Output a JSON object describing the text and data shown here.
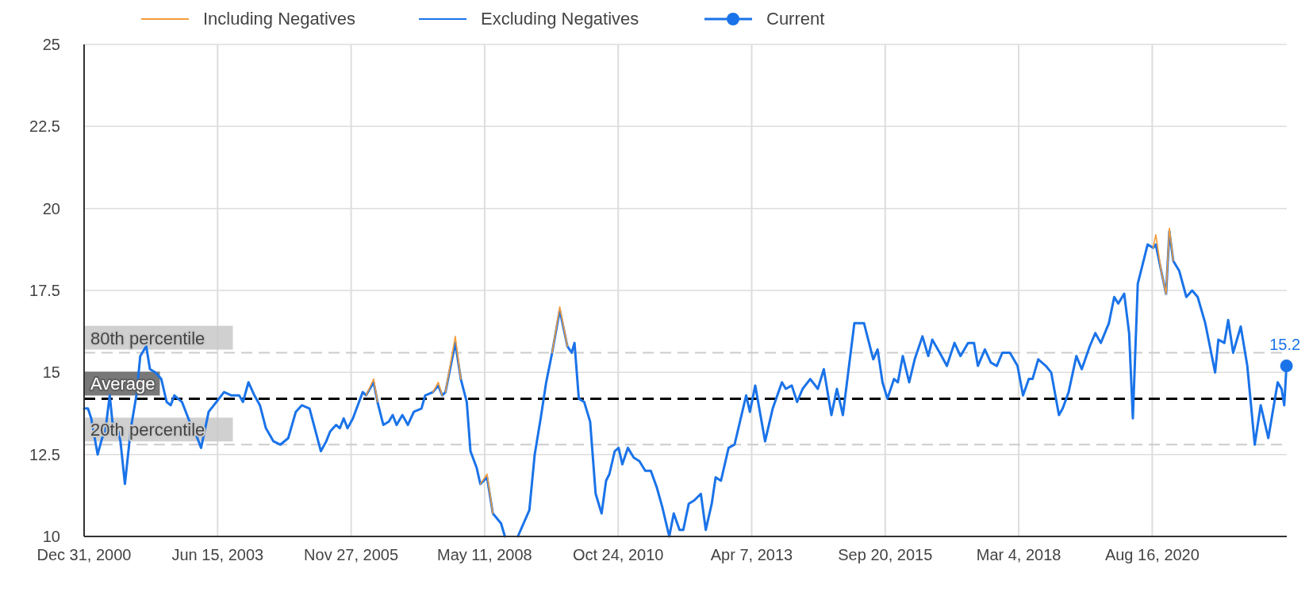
{
  "chart_data": {
    "type": "line",
    "legend": "top",
    "grid": true,
    "marker": "none",
    "line_style": "solid",
    "xlim": [
      "2000-12-31",
      "2023-02-05"
    ],
    "xticks": [
      {
        "value": "2000-12-31",
        "label": "Dec 31, 2000"
      },
      {
        "value": "2003-06-15",
        "label": "Jun 15, 2003"
      },
      {
        "value": "2005-11-27",
        "label": "Nov 27, 2005"
      },
      {
        "value": "2008-05-11",
        "label": "May 11, 2008"
      },
      {
        "value": "2010-10-24",
        "label": "Oct 24, 2010"
      },
      {
        "value": "2013-04-07",
        "label": "Apr 7, 2013"
      },
      {
        "value": "2015-09-20",
        "label": "Sep 20, 2015"
      },
      {
        "value": "2018-03-04",
        "label": "Mar 4, 2018"
      },
      {
        "value": "2020-08-16",
        "label": "Aug 16, 2020"
      }
    ],
    "ylim": [
      10,
      25
    ],
    "yticks": [
      10,
      12.5,
      15,
      17.5,
      20,
      22.5,
      25
    ],
    "x": [
      "2000-12-31",
      "2001-01-26",
      "2001-02-17",
      "2001-04-01",
      "2001-05-01",
      "2001-05-22",
      "2001-06-21",
      "2001-07-16",
      "2001-08-18",
      "2001-09-01",
      "2001-10-01",
      "2001-11-10",
      "2001-12-17",
      "2002-01-12",
      "2002-02-21",
      "2002-03-18",
      "2002-04-23",
      "2002-06-02",
      "2002-07-08",
      "2002-08-04",
      "2002-08-29",
      "2002-10-19",
      "2002-12-09",
      "2003-01-30",
      "2003-02-24",
      "2003-04-16",
      "2003-06-07",
      "2003-07-28",
      "2003-09-17",
      "2003-11-07",
      "2003-12-02",
      "2004-01-08",
      "2004-02-17",
      "2004-03-25",
      "2004-05-04",
      "2004-06-24",
      "2004-08-10",
      "2004-10-01",
      "2004-11-21",
      "2004-12-31",
      "2005-02-21",
      "2005-03-28",
      "2005-05-08",
      "2005-06-13",
      "2005-07-09",
      "2005-08-18",
      "2005-09-12",
      "2005-10-08",
      "2005-11-03",
      "2005-12-09",
      "2006-01-19",
      "2006-02-13",
      "2006-03-07",
      "2006-04-27",
      "2006-05-23",
      "2006-07-01",
      "2006-08-07",
      "2006-09-02",
      "2006-09-28",
      "2006-11-06",
      "2006-12-13",
      "2007-01-22",
      "2007-03-14",
      "2007-04-08",
      "2007-05-30",
      "2007-07-05",
      "2007-07-31",
      "2007-08-22",
      "2007-10-27",
      "2007-12-03",
      "2008-01-12",
      "2008-02-06",
      "2008-03-18",
      "2008-04-12",
      "2008-05-27",
      "2008-07-05",
      "2008-08-29",
      "2008-09-24",
      "2008-11-15",
      "2008-12-20",
      "2009-03-07",
      "2009-04-12",
      "2009-05-22",
      "2009-06-28",
      "2009-08-07",
      "2009-09-27",
      "2009-11-17",
      "2009-12-16",
      "2010-01-04",
      "2010-02-02",
      "2010-03-10",
      "2010-04-19",
      "2010-05-26",
      "2010-07-05",
      "2010-08-04",
      "2010-08-26",
      "2010-10-01",
      "2010-10-27",
      "2010-11-21",
      "2010-12-28",
      "2011-02-06",
      "2011-03-15",
      "2011-04-24",
      "2011-05-31",
      "2011-07-10",
      "2011-08-16",
      "2011-10-02",
      "2011-11-01",
      "2011-12-10",
      "2012-01-04",
      "2012-02-10",
      "2012-03-18",
      "2012-05-01",
      "2012-06-03",
      "2012-07-13",
      "2012-08-08",
      "2012-09-13",
      "2012-11-03",
      "2012-12-13",
      "2013-03-01",
      "2013-03-26",
      "2013-05-01",
      "2013-07-06",
      "2013-08-26",
      "2013-10-27",
      "2013-11-22",
      "2014-01-01",
      "2014-02-06",
      "2014-03-15",
      "2014-05-05",
      "2014-06-25",
      "2014-08-04",
      "2014-09-24",
      "2014-10-31",
      "2014-12-10",
      "2015-02-25",
      "2015-05-01",
      "2015-07-02",
      "2015-07-31",
      "2015-09-02",
      "2015-10-05",
      "2015-11-18",
      "2015-12-14",
      "2016-01-16",
      "2016-02-28",
      "2016-04-05",
      "2016-05-27",
      "2016-07-05",
      "2016-08-01",
      "2016-09-20",
      "2016-11-07",
      "2016-12-28",
      "2017-02-06",
      "2017-03-29",
      "2017-05-08",
      "2017-06-03",
      "2017-07-20",
      "2017-08-29",
      "2017-10-08",
      "2017-11-14",
      "2018-01-04",
      "2018-02-24",
      "2018-04-02",
      "2018-05-11",
      "2018-06-05",
      "2018-07-13",
      "2018-09-02",
      "2018-10-08",
      "2018-11-29",
      "2018-12-24",
      "2019-02-02",
      "2019-03-26",
      "2019-05-01",
      "2019-06-24",
      "2019-07-31",
      "2019-09-06",
      "2019-10-30",
      "2019-12-05",
      "2020-01-01",
      "2020-02-10",
      "2020-03-14",
      "2020-04-08",
      "2020-05-11",
      "2020-07-16",
      "2020-08-22",
      "2020-09-09",
      "2020-10-15",
      "2020-11-17",
      "2020-12-09",
      "2021-01-04",
      "2021-02-13",
      "2021-04-02",
      "2021-05-11",
      "2021-06-17",
      "2021-08-07",
      "2021-10-12",
      "2021-11-03",
      "2021-12-13",
      "2022-01-08",
      "2022-02-10",
      "2022-04-02",
      "2022-05-16",
      "2022-07-05",
      "2022-08-14",
      "2022-10-04",
      "2022-12-06",
      "2023-01-01",
      "2023-01-19",
      "2023-02-03"
    ],
    "series": [
      {
        "name": "Including Negatives",
        "color": "#f39c3c",
        "x": [
          "2006-03-07",
          "2006-04-27",
          "2006-05-23",
          null,
          "2007-05-30",
          "2007-07-05",
          "2007-07-31",
          null,
          "2007-08-22",
          "2007-10-27",
          "2007-12-03",
          null,
          "2008-04-12",
          "2008-05-27",
          "2008-07-05",
          null,
          "2009-08-07",
          "2009-09-27",
          "2009-11-17",
          null,
          "2020-08-22",
          "2020-09-09",
          "2020-10-15",
          "2020-11-17",
          "2020-12-09",
          "2021-01-04"
        ],
        "values": [
          14.3,
          14.8,
          14.1,
          null,
          14.4,
          14.7,
          14.3,
          null,
          14.4,
          16.1,
          14.8,
          null,
          11.6,
          11.9,
          10.7,
          null,
          15.6,
          17.0,
          15.8,
          null,
          18.8,
          19.2,
          18.1,
          17.4,
          19.4,
          18.4
        ]
      },
      {
        "name": "Excluding Negatives",
        "color": "#1a73e8",
        "values": [
          13.9,
          13.9,
          13.6,
          12.5,
          13.0,
          13.2,
          14.3,
          13.2,
          13.2,
          12.9,
          11.6,
          13.3,
          14.3,
          15.5,
          15.8,
          15.1,
          15.0,
          14.8,
          14.1,
          14.0,
          14.3,
          14.1,
          13.5,
          13.0,
          12.7,
          13.8,
          14.1,
          14.4,
          14.3,
          14.3,
          14.1,
          14.7,
          14.3,
          14.0,
          13.3,
          12.9,
          12.8,
          13.0,
          13.8,
          14.0,
          13.9,
          13.3,
          12.6,
          12.9,
          13.2,
          13.4,
          13.3,
          13.6,
          13.3,
          13.6,
          14.1,
          14.4,
          14.3,
          14.7,
          14.1,
          13.4,
          13.5,
          13.7,
          13.4,
          13.7,
          13.4,
          13.8,
          13.9,
          14.3,
          14.4,
          14.6,
          14.3,
          14.4,
          15.9,
          14.8,
          14.1,
          12.6,
          12.1,
          11.6,
          11.8,
          10.7,
          10.4,
          10.0,
          null,
          10.0,
          10.8,
          12.5,
          13.6,
          14.7,
          15.6,
          16.9,
          15.8,
          15.6,
          15.9,
          14.2,
          14.1,
          13.5,
          11.3,
          10.7,
          11.7,
          11.9,
          12.6,
          12.7,
          12.2,
          12.7,
          12.4,
          12.3,
          12.0,
          12.0,
          11.5,
          10.9,
          10.0,
          10.7,
          10.2,
          10.2,
          11.0,
          11.1,
          11.3,
          10.2,
          11.0,
          11.8,
          11.7,
          12.7,
          12.8,
          14.3,
          13.8,
          14.6,
          12.9,
          13.9,
          14.7,
          14.5,
          14.6,
          14.1,
          14.5,
          14.8,
          14.5,
          15.1,
          13.7,
          14.5,
          13.7,
          16.5,
          16.5,
          15.4,
          15.7,
          14.7,
          14.2,
          14.8,
          14.7,
          15.5,
          14.7,
          15.4,
          16.1,
          15.5,
          16.0,
          15.6,
          15.2,
          15.9,
          15.5,
          15.9,
          15.9,
          15.2,
          15.7,
          15.3,
          15.2,
          15.6,
          15.6,
          15.2,
          14.3,
          14.8,
          14.8,
          15.4,
          15.2,
          15.0,
          13.7,
          13.9,
          14.4,
          15.5,
          15.1,
          15.8,
          16.2,
          15.9,
          16.5,
          17.3,
          17.1,
          17.4,
          16.2,
          13.6,
          17.7,
          18.9,
          18.8,
          18.9,
          18.1,
          17.4,
          19.3,
          18.4,
          18.1,
          17.3,
          17.5,
          17.3,
          16.5,
          15.0,
          16.0,
          15.9,
          16.6,
          15.6,
          16.4,
          15.2,
          12.8,
          14.0,
          13.0,
          14.7,
          14.5,
          14.0,
          15.2
        ]
      },
      {
        "name": "Current",
        "color": "#1a73e8",
        "marker": "circle",
        "x": [
          "2023-02-03"
        ],
        "values": [
          15.2
        ],
        "value_labels": [
          "15.2"
        ]
      }
    ],
    "ref_lines": [
      {
        "axis": "y",
        "value": 15.6,
        "label": "80th percentile",
        "color": "#cccccc",
        "line_style": "dashed"
      },
      {
        "axis": "y",
        "value": 14.2,
        "label": "Average",
        "color": "#000000",
        "line_style": "dashed"
      },
      {
        "axis": "y",
        "value": 12.8,
        "label": "20th percentile",
        "color": "#cccccc",
        "line_style": "dashed"
      }
    ]
  }
}
